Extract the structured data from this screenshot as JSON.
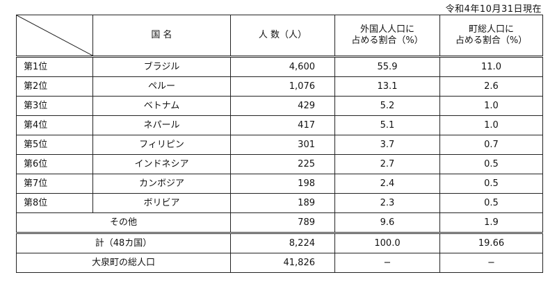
{
  "date_note": "令和4年10月31日現在",
  "headers": {
    "country": "国  名",
    "population": "人 数（人）",
    "foreign_share_line1": "外国人人口に",
    "foreign_share_line2": "占める割合（%）",
    "town_share_line1": "町総人口に",
    "town_share_line2": "占める割合（%）"
  },
  "rows": [
    {
      "rank": "第1位",
      "country": "ブラジル",
      "population": "4,600",
      "foreign_share": "55.9",
      "town_share": "11.0"
    },
    {
      "rank": "第2位",
      "country": "ペルー",
      "population": "1,076",
      "foreign_share": "13.1",
      "town_share": "2.6"
    },
    {
      "rank": "第3位",
      "country": "ベトナム",
      "population": "429",
      "foreign_share": "5.2",
      "town_share": "1.0"
    },
    {
      "rank": "第4位",
      "country": "ネパール",
      "population": "417",
      "foreign_share": "5.1",
      "town_share": "1.0"
    },
    {
      "rank": "第5位",
      "country": "フィリピン",
      "population": "301",
      "foreign_share": "3.7",
      "town_share": "0.7"
    },
    {
      "rank": "第6位",
      "country": "インドネシア",
      "population": "225",
      "foreign_share": "2.7",
      "town_share": "0.5"
    },
    {
      "rank": "第7位",
      "country": "カンボジア",
      "population": "198",
      "foreign_share": "2.4",
      "town_share": "0.5"
    },
    {
      "rank": "第8位",
      "country": "ボリビア",
      "population": "189",
      "foreign_share": "2.3",
      "town_share": "0.5"
    }
  ],
  "other": {
    "label": "その他",
    "population": "789",
    "foreign_share": "9.6",
    "town_share": "1.9"
  },
  "total": {
    "label": "計（48カ国）",
    "population": "8,224",
    "foreign_share": "100.0",
    "town_share": "19.66"
  },
  "town_total": {
    "label": "大泉町の総人口",
    "population": "41,826",
    "foreign_share": "−",
    "town_share": "−"
  }
}
